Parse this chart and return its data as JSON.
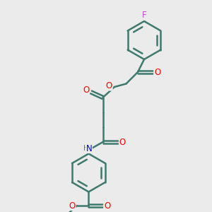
{
  "bg_color": "#ebebeb",
  "bond_color": "#3d7a6e",
  "bond_width": 1.8,
  "atom_colors": {
    "O": "#ff0000",
    "N": "#0000cc",
    "F": "#cc44cc",
    "C": "#3d7a6e",
    "H": "#3d7a6e"
  },
  "font_size": 8.5,
  "fig_size": [
    3.0,
    3.0
  ],
  "dpi": 100
}
